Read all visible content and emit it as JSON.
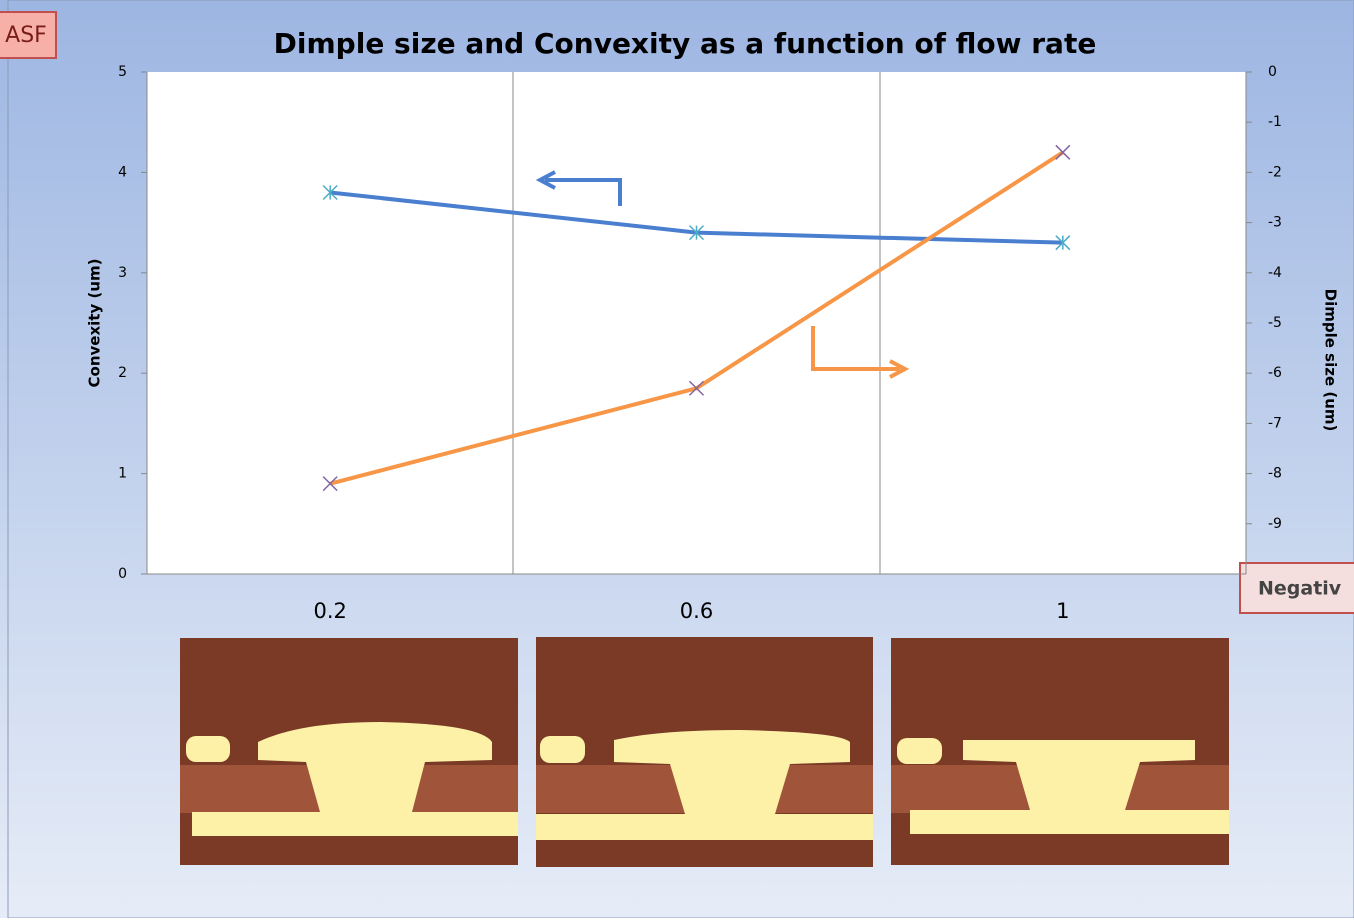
{
  "chart_data": {
    "type": "line",
    "title": "Dimple size and Convexity as a function of flow rate",
    "y_label": "Convexity (um)",
    "y2_label": "Dimple size (um)",
    "categories": [
      "0.2",
      "0.6",
      "1"
    ],
    "series": [
      {
        "color": "#4a7fd0",
        "values": [
          3.8,
          3.4,
          3.3
        ]
      },
      {
        "color": "#f79646",
        "values": [
          -8.2,
          -6.3,
          -1.6
        ],
        "axis": "y2"
      }
    ],
    "ylim": [
      0,
      5
    ],
    "yticks": [
      0,
      1,
      2,
      3,
      4,
      5
    ],
    "y2lim": [
      -10,
      0
    ],
    "y2ticks": [
      0,
      -1,
      -2,
      -3,
      -4,
      -5,
      -6,
      -7,
      -8,
      -9
    ]
  },
  "tags": {
    "left": "ASF",
    "right": "Negativ"
  }
}
